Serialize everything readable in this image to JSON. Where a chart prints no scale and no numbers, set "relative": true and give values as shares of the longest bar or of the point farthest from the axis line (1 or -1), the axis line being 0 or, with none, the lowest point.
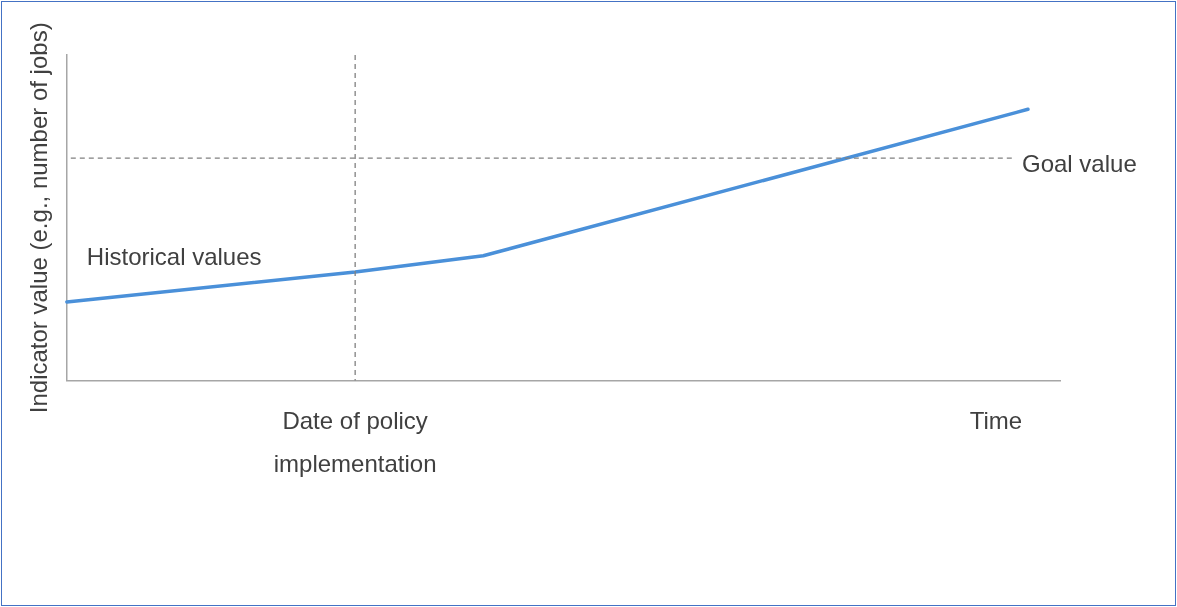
{
  "chart_data": {
    "type": "line",
    "relative": true,
    "ylabel": "Indicator value (e.g., number of jobs)",
    "categories": [
      null,
      null,
      null,
      null,
      null,
      null,
      null,
      null,
      null,
      "Date of policy implementation",
      null,
      null,
      null,
      null,
      null,
      null,
      null,
      null,
      null,
      null,
      null,
      null,
      null,
      null,
      null,
      null,
      null,
      null,
      null,
      "Time",
      null,
      null
    ],
    "tick_labels": "x",
    "marker": "none",
    "line_style": "solid",
    "series": [
      {
        "color": "#4a90d9",
        "values": [
          0.29,
          null,
          null,
          null,
          null,
          null,
          null,
          null,
          null,
          0.4,
          null,
          null,
          null,
          0.46,
          null,
          null,
          null,
          null,
          null,
          null,
          null,
          null,
          null,
          null,
          null,
          null,
          null,
          null,
          null,
          null,
          1,
          null
        ]
      }
    ],
    "ref_lines": [
      {
        "axis": "y",
        "value": 0.82,
        "label": "Goal value",
        "color": "#808080",
        "line_style": "dashed"
      },
      {
        "axis": "x",
        "value": "Date of policy implementation",
        "color": "#808080",
        "line_style": "dashed"
      }
    ],
    "annotations": [
      "Historical values"
    ]
  }
}
